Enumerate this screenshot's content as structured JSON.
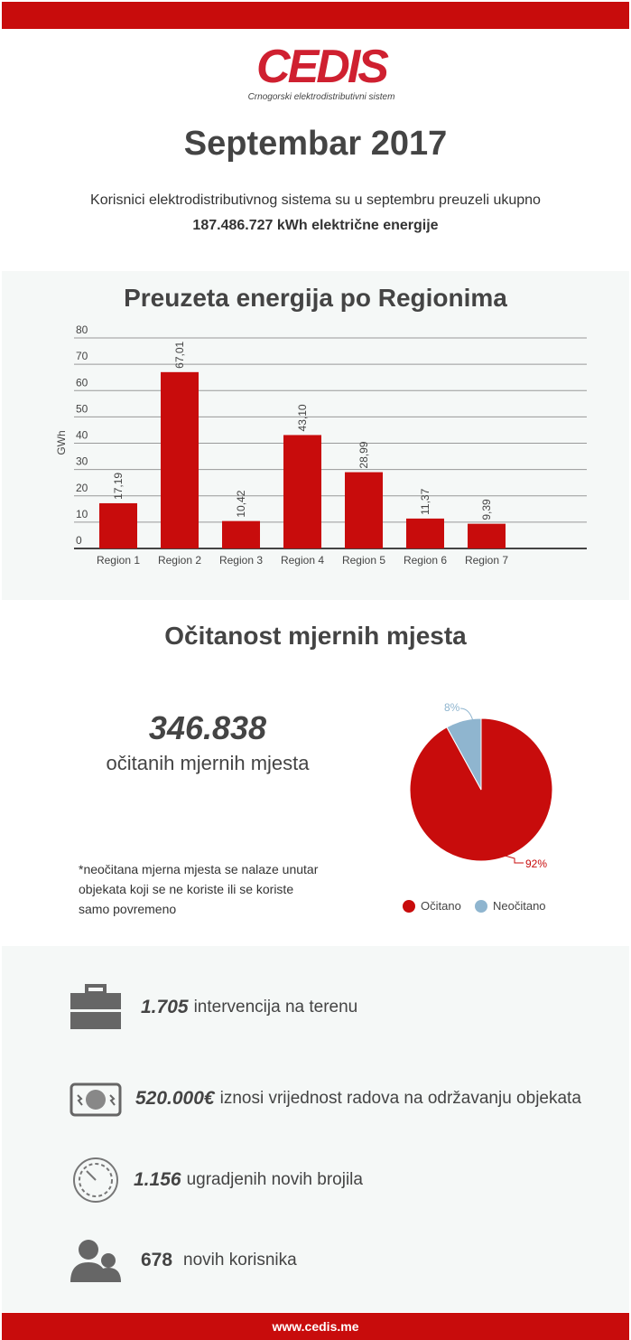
{
  "logo": {
    "text": "CEDIS",
    "subtitle": "Crnogorski elektrodistributivni sistem"
  },
  "title": "Septembar 2017",
  "intro": {
    "line1": "Korisnici elektrodistributivnog sistema su u septembru preuzeli ukupno",
    "line2": "187.486.727 kWh električne energije"
  },
  "colors": {
    "brand": "#c80c0c",
    "neocitano": "#8fb5cf"
  },
  "chart_data": [
    {
      "type": "bar",
      "title": "Preuzeta energija po Regionima",
      "ylabel": "GWh",
      "xlabel": "",
      "ylim": [
        0,
        80
      ],
      "yticks": [
        0,
        10,
        20,
        30,
        40,
        50,
        60,
        70,
        80
      ],
      "grid": true,
      "categories": [
        "Region 1",
        "Region 2",
        "Region 3",
        "Region 4",
        "Region 5",
        "Region 6",
        "Region 7"
      ],
      "values": [
        17.19,
        67.01,
        10.42,
        43.1,
        28.99,
        11.37,
        9.39
      ],
      "data_labels": [
        "17,19",
        "67,01",
        "10,42",
        "43,10",
        "28,99",
        "11,37",
        "9,39"
      ]
    },
    {
      "type": "pie",
      "title": "Očitanost mjernih mjesta",
      "legend": "bottom",
      "slices": [
        {
          "name": "Očitano",
          "value": 92,
          "label": "92%",
          "color": "#c80c0c"
        },
        {
          "name": "Neočitano",
          "value": 8,
          "label": "8%",
          "color": "#8fb5cf"
        }
      ]
    }
  ],
  "reading": {
    "number": "346.838",
    "caption": "očitanih mjernih mjesta",
    "note": [
      "*neočitana mjerna mjesta se nalaze unutar",
      "objekata koji se ne koriste ili se koriste",
      "samo povremeno"
    ]
  },
  "stats": [
    {
      "icon": "toolbox-icon",
      "value": "1.705",
      "text": "intervencija na terenu"
    },
    {
      "icon": "power-plant-icon",
      "value": "520.000€",
      "text": "iznosi vrijednost radova na održavanju objekata"
    },
    {
      "icon": "meter-gauge-icon",
      "value": "1.156",
      "text": "ugradjenih novih brojila"
    },
    {
      "icon": "users-icon",
      "value": "678",
      "text": "novih korisnika"
    }
  ],
  "footer": "www.cedis.me"
}
